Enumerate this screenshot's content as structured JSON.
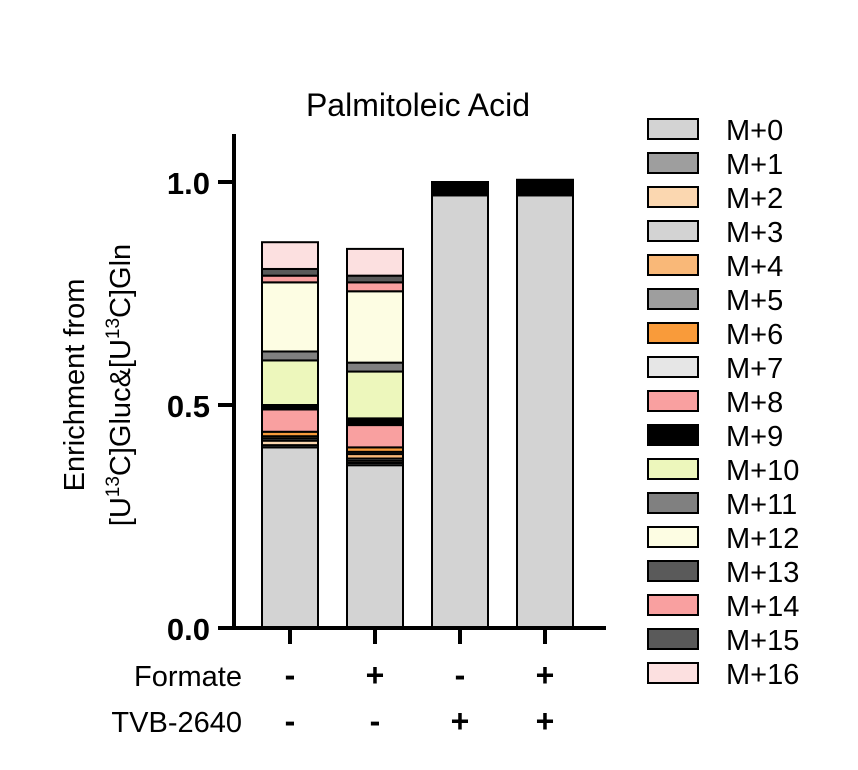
{
  "chart_data": {
    "type": "bar",
    "stacked": true,
    "title": "Palmitoleic Acid",
    "ylabel_line1": "Enrichment from",
    "ylabel_line2": [
      "[U",
      "13",
      "C]Gluc&[U",
      "13",
      "C]Gln"
    ],
    "ylim": [
      0,
      1.1
    ],
    "yticks": [
      {
        "value": 0,
        "label": "0.0"
      },
      {
        "value": 0.5,
        "label": "0.5"
      },
      {
        "value": 1.0,
        "label": "1.0"
      }
    ],
    "grid": false,
    "legend_position": "right",
    "conditions": [
      {
        "name": "Formate",
        "values": [
          "-",
          "+",
          "-",
          "+"
        ]
      },
      {
        "name": "TVB-2640",
        "values": [
          "-",
          "-",
          "+",
          "+"
        ]
      }
    ],
    "series": [
      {
        "name": "M+0",
        "color": "#d3d3d3",
        "values": [
          0.405,
          0.365,
          0.97,
          0.97
        ]
      },
      {
        "name": "M+1",
        "color": "#9e9e9e",
        "values": [
          0.005,
          0.005,
          0.0,
          0.0
        ]
      },
      {
        "name": "M+2",
        "color": "#fbd7b0",
        "values": [
          0.01,
          0.005,
          0.0,
          0.0
        ]
      },
      {
        "name": "M+3",
        "color": "#d3d3d3",
        "values": [
          0.005,
          0.005,
          0.0,
          0.0
        ]
      },
      {
        "name": "M+4",
        "color": "#f9b878",
        "values": [
          0.005,
          0.01,
          0.0,
          0.0
        ]
      },
      {
        "name": "M+5",
        "color": "#9e9e9e",
        "values": [
          0.0,
          0.005,
          0.0,
          0.0
        ]
      },
      {
        "name": "M+6",
        "color": "#f99b3a",
        "values": [
          0.01,
          0.01,
          0.0,
          0.0
        ]
      },
      {
        "name": "M+7",
        "color": "#e6e6e6",
        "values": [
          0.0,
          0.0,
          0.0,
          0.0
        ]
      },
      {
        "name": "M+8",
        "color": "#f9a0a0",
        "values": [
          0.05,
          0.05,
          0.0,
          0.0
        ]
      },
      {
        "name": "M+9",
        "color": "#000000",
        "values": [
          0.01,
          0.015,
          0.03,
          0.035
        ]
      },
      {
        "name": "M+10",
        "color": "#edf7bc",
        "values": [
          0.1,
          0.105,
          0.0,
          0.0
        ]
      },
      {
        "name": "M+11",
        "color": "#808080",
        "values": [
          0.02,
          0.02,
          0.0,
          0.0
        ]
      },
      {
        "name": "M+12",
        "color": "#fdfde3",
        "values": [
          0.155,
          0.16,
          0.0,
          0.0
        ]
      },
      {
        "name": "M+13",
        "color": "#5a5a5a",
        "values": [
          0.0,
          0.0,
          0.0,
          0.0
        ]
      },
      {
        "name": "M+14",
        "color": "#f9a0a0",
        "values": [
          0.015,
          0.02,
          0.0,
          0.0
        ]
      },
      {
        "name": "M+15",
        "color": "#5a5a5a",
        "values": [
          0.015,
          0.015,
          0.0,
          0.0
        ]
      },
      {
        "name": "M+16",
        "color": "#fce0e0",
        "values": [
          0.06,
          0.06,
          0.0,
          0.0
        ]
      }
    ]
  }
}
